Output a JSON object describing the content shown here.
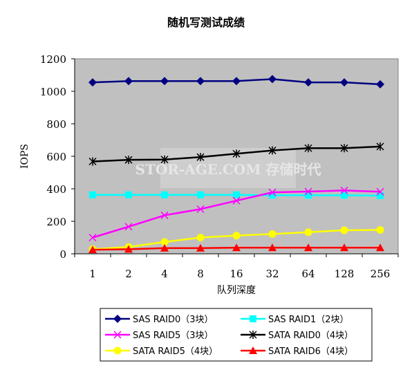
{
  "chart_data": {
    "type": "line",
    "title": "随机写测试成绩",
    "xlabel": "队列深度",
    "ylabel": "IOPS",
    "categories": [
      "1",
      "2",
      "4",
      "8",
      "16",
      "32",
      "64",
      "128",
      "256"
    ],
    "ylim": [
      0,
      1200
    ],
    "yticks": [
      0,
      200,
      400,
      600,
      800,
      1000,
      1200
    ],
    "grid": false,
    "legend_position": "bottom",
    "watermark": "STOR-AGE.COM 存储时代",
    "series": [
      {
        "name": "SAS RAID0（3块）",
        "color": "#000080",
        "marker": "diamond",
        "values": [
          1055,
          1063,
          1063,
          1063,
          1063,
          1075,
          1055,
          1055,
          1043
        ]
      },
      {
        "name": "SAS RAID1（2块）",
        "color": "#00FFFF",
        "marker": "square",
        "values": [
          363,
          363,
          363,
          363,
          363,
          360,
          360,
          360,
          358
        ]
      },
      {
        "name": "SAS RAID5（3块）",
        "color": "#FF00FF",
        "marker": "x",
        "values": [
          100,
          167,
          237,
          275,
          327,
          378,
          383,
          390,
          382
        ]
      },
      {
        "name": "SATA RAID0（4块）",
        "color": "#000000",
        "marker": "star",
        "values": [
          568,
          578,
          580,
          595,
          616,
          636,
          650,
          650,
          660
        ]
      },
      {
        "name": "SATA RAID5（4块）",
        "color": "#FFFF00",
        "marker": "circle",
        "values": [
          28,
          42,
          73,
          100,
          112,
          122,
          133,
          145,
          147
        ]
      },
      {
        "name": "SATA RAID6（4块）",
        "color": "#FF0000",
        "marker": "triangle",
        "values": [
          25,
          28,
          35,
          35,
          38,
          38,
          38,
          38,
          38
        ]
      }
    ]
  }
}
